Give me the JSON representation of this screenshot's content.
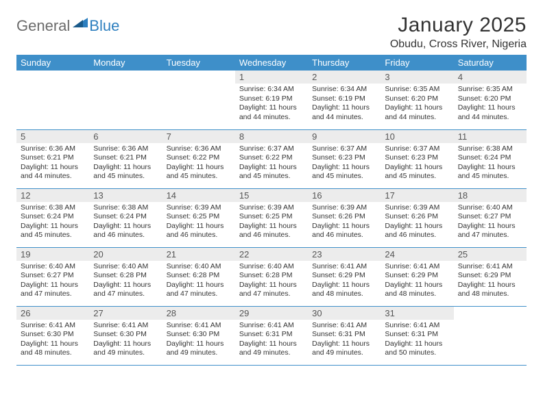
{
  "logo": {
    "word1": "General",
    "word2": "Blue"
  },
  "title": "January 2025",
  "location": "Obudu, Cross River, Nigeria",
  "colors": {
    "header_bg": "#3e8fc9",
    "header_text": "#ffffff",
    "daynum_bg": "#ececec",
    "daynum_text": "#555555",
    "body_text": "#333333",
    "row_border": "#3e8fc9",
    "logo_gray": "#6b6b6b",
    "logo_blue": "#2d7fbf",
    "page_bg": "#ffffff"
  },
  "weekdays": [
    "Sunday",
    "Monday",
    "Tuesday",
    "Wednesday",
    "Thursday",
    "Friday",
    "Saturday"
  ],
  "first_weekday_index": 3,
  "days": [
    {
      "n": 1,
      "sr": "6:34 AM",
      "ss": "6:19 PM",
      "dl": "11 hours and 44 minutes."
    },
    {
      "n": 2,
      "sr": "6:34 AM",
      "ss": "6:19 PM",
      "dl": "11 hours and 44 minutes."
    },
    {
      "n": 3,
      "sr": "6:35 AM",
      "ss": "6:20 PM",
      "dl": "11 hours and 44 minutes."
    },
    {
      "n": 4,
      "sr": "6:35 AM",
      "ss": "6:20 PM",
      "dl": "11 hours and 44 minutes."
    },
    {
      "n": 5,
      "sr": "6:36 AM",
      "ss": "6:21 PM",
      "dl": "11 hours and 44 minutes."
    },
    {
      "n": 6,
      "sr": "6:36 AM",
      "ss": "6:21 PM",
      "dl": "11 hours and 45 minutes."
    },
    {
      "n": 7,
      "sr": "6:36 AM",
      "ss": "6:22 PM",
      "dl": "11 hours and 45 minutes."
    },
    {
      "n": 8,
      "sr": "6:37 AM",
      "ss": "6:22 PM",
      "dl": "11 hours and 45 minutes."
    },
    {
      "n": 9,
      "sr": "6:37 AM",
      "ss": "6:23 PM",
      "dl": "11 hours and 45 minutes."
    },
    {
      "n": 10,
      "sr": "6:37 AM",
      "ss": "6:23 PM",
      "dl": "11 hours and 45 minutes."
    },
    {
      "n": 11,
      "sr": "6:38 AM",
      "ss": "6:24 PM",
      "dl": "11 hours and 45 minutes."
    },
    {
      "n": 12,
      "sr": "6:38 AM",
      "ss": "6:24 PM",
      "dl": "11 hours and 45 minutes."
    },
    {
      "n": 13,
      "sr": "6:38 AM",
      "ss": "6:24 PM",
      "dl": "11 hours and 46 minutes."
    },
    {
      "n": 14,
      "sr": "6:39 AM",
      "ss": "6:25 PM",
      "dl": "11 hours and 46 minutes."
    },
    {
      "n": 15,
      "sr": "6:39 AM",
      "ss": "6:25 PM",
      "dl": "11 hours and 46 minutes."
    },
    {
      "n": 16,
      "sr": "6:39 AM",
      "ss": "6:26 PM",
      "dl": "11 hours and 46 minutes."
    },
    {
      "n": 17,
      "sr": "6:39 AM",
      "ss": "6:26 PM",
      "dl": "11 hours and 46 minutes."
    },
    {
      "n": 18,
      "sr": "6:40 AM",
      "ss": "6:27 PM",
      "dl": "11 hours and 47 minutes."
    },
    {
      "n": 19,
      "sr": "6:40 AM",
      "ss": "6:27 PM",
      "dl": "11 hours and 47 minutes."
    },
    {
      "n": 20,
      "sr": "6:40 AM",
      "ss": "6:28 PM",
      "dl": "11 hours and 47 minutes."
    },
    {
      "n": 21,
      "sr": "6:40 AM",
      "ss": "6:28 PM",
      "dl": "11 hours and 47 minutes."
    },
    {
      "n": 22,
      "sr": "6:40 AM",
      "ss": "6:28 PM",
      "dl": "11 hours and 47 minutes."
    },
    {
      "n": 23,
      "sr": "6:41 AM",
      "ss": "6:29 PM",
      "dl": "11 hours and 48 minutes."
    },
    {
      "n": 24,
      "sr": "6:41 AM",
      "ss": "6:29 PM",
      "dl": "11 hours and 48 minutes."
    },
    {
      "n": 25,
      "sr": "6:41 AM",
      "ss": "6:29 PM",
      "dl": "11 hours and 48 minutes."
    },
    {
      "n": 26,
      "sr": "6:41 AM",
      "ss": "6:30 PM",
      "dl": "11 hours and 48 minutes."
    },
    {
      "n": 27,
      "sr": "6:41 AM",
      "ss": "6:30 PM",
      "dl": "11 hours and 49 minutes."
    },
    {
      "n": 28,
      "sr": "6:41 AM",
      "ss": "6:30 PM",
      "dl": "11 hours and 49 minutes."
    },
    {
      "n": 29,
      "sr": "6:41 AM",
      "ss": "6:31 PM",
      "dl": "11 hours and 49 minutes."
    },
    {
      "n": 30,
      "sr": "6:41 AM",
      "ss": "6:31 PM",
      "dl": "11 hours and 49 minutes."
    },
    {
      "n": 31,
      "sr": "6:41 AM",
      "ss": "6:31 PM",
      "dl": "11 hours and 50 minutes."
    }
  ],
  "labels": {
    "sunrise": "Sunrise:",
    "sunset": "Sunset:",
    "daylight": "Daylight:"
  }
}
